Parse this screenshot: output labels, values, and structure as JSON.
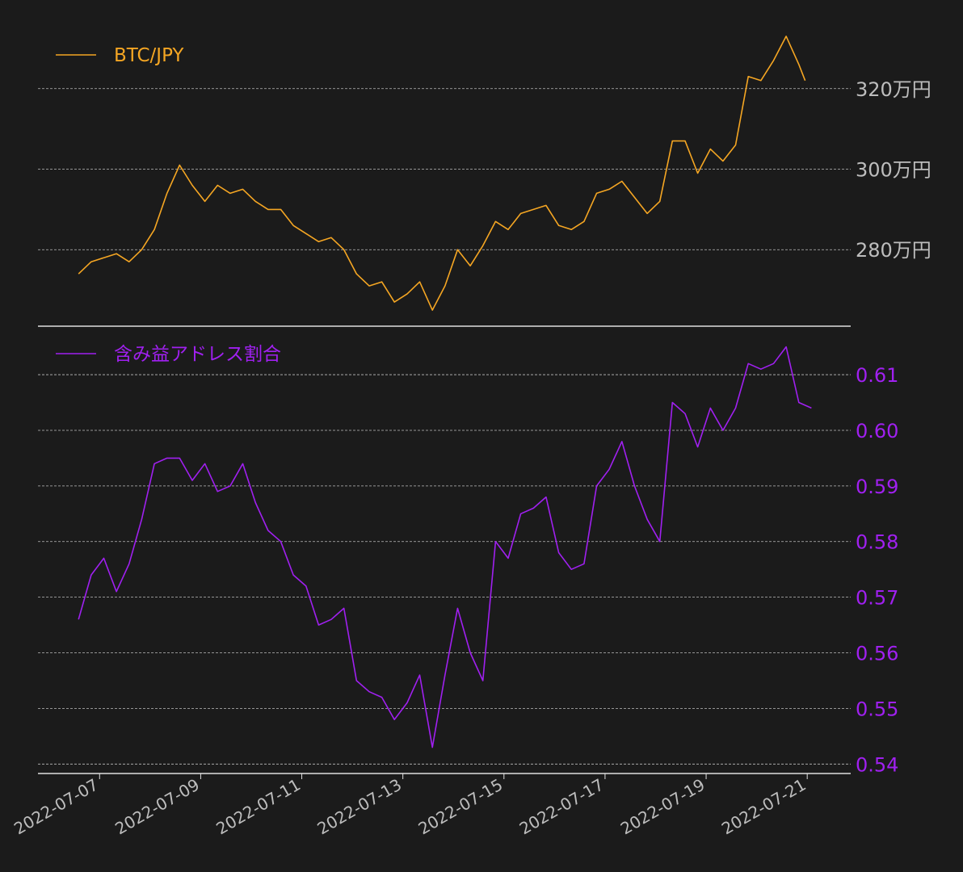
{
  "colors": {
    "background": "#1b1b1b",
    "btc": "#f5a623",
    "ratio": "#a020f0",
    "grid": "#bdbdbd",
    "axis": "#e0e0e0",
    "btc_tick": "#bdbdbd",
    "ratio_tick": "#a020f0"
  },
  "chart_data": [
    {
      "type": "line",
      "panel": "top",
      "grid": true,
      "legend_position": "top-left",
      "series": [
        {
          "name": "BTC/JPY",
          "color": "#f5a623"
        }
      ],
      "y_ticks": [
        280,
        300,
        320
      ],
      "y_tick_labels": [
        "280万円",
        "300万円",
        "320万円"
      ],
      "ylim": [
        261,
        338
      ],
      "x_range": [
        "2022-07-06T12:00",
        "2022-07-21T03:00"
      ],
      "points": [
        [
          "2022-07-06T14:00",
          274
        ],
        [
          "2022-07-06T20:00",
          277
        ],
        [
          "2022-07-07T02:00",
          278
        ],
        [
          "2022-07-07T08:00",
          279
        ],
        [
          "2022-07-07T14:00",
          277
        ],
        [
          "2022-07-07T20:00",
          280
        ],
        [
          "2022-07-08T02:00",
          285
        ],
        [
          "2022-07-08T08:00",
          294
        ],
        [
          "2022-07-08T14:00",
          301
        ],
        [
          "2022-07-08T20:00",
          296
        ],
        [
          "2022-07-09T02:00",
          292
        ],
        [
          "2022-07-09T08:00",
          296
        ],
        [
          "2022-07-09T14:00",
          294
        ],
        [
          "2022-07-09T20:00",
          295
        ],
        [
          "2022-07-10T02:00",
          292
        ],
        [
          "2022-07-10T08:00",
          290
        ],
        [
          "2022-07-10T14:00",
          290
        ],
        [
          "2022-07-10T20:00",
          286
        ],
        [
          "2022-07-11T02:00",
          284
        ],
        [
          "2022-07-11T08:00",
          282
        ],
        [
          "2022-07-11T14:00",
          283
        ],
        [
          "2022-07-11T20:00",
          280
        ],
        [
          "2022-07-12T02:00",
          274
        ],
        [
          "2022-07-12T08:00",
          271
        ],
        [
          "2022-07-12T14:00",
          272
        ],
        [
          "2022-07-12T20:00",
          267
        ],
        [
          "2022-07-13T02:00",
          269
        ],
        [
          "2022-07-13T08:00",
          272
        ],
        [
          "2022-07-13T14:00",
          265
        ],
        [
          "2022-07-13T20:00",
          271
        ],
        [
          "2022-07-14T02:00",
          280
        ],
        [
          "2022-07-14T08:00",
          276
        ],
        [
          "2022-07-14T14:00",
          281
        ],
        [
          "2022-07-14T20:00",
          287
        ],
        [
          "2022-07-15T02:00",
          285
        ],
        [
          "2022-07-15T08:00",
          289
        ],
        [
          "2022-07-15T14:00",
          290
        ],
        [
          "2022-07-15T20:00",
          291
        ],
        [
          "2022-07-16T02:00",
          286
        ],
        [
          "2022-07-16T08:00",
          285
        ],
        [
          "2022-07-16T14:00",
          287
        ],
        [
          "2022-07-16T20:00",
          294
        ],
        [
          "2022-07-17T02:00",
          295
        ],
        [
          "2022-07-17T08:00",
          297
        ],
        [
          "2022-07-17T14:00",
          293
        ],
        [
          "2022-07-17T20:00",
          289
        ],
        [
          "2022-07-18T02:00",
          292
        ],
        [
          "2022-07-18T08:00",
          307
        ],
        [
          "2022-07-18T14:00",
          307
        ],
        [
          "2022-07-18T20:00",
          299
        ],
        [
          "2022-07-19T02:00",
          305
        ],
        [
          "2022-07-19T08:00",
          302
        ],
        [
          "2022-07-19T14:00",
          306
        ],
        [
          "2022-07-19T20:00",
          323
        ],
        [
          "2022-07-20T02:00",
          322
        ],
        [
          "2022-07-20T08:00",
          327
        ],
        [
          "2022-07-20T14:00",
          333
        ],
        [
          "2022-07-20T20:00",
          326
        ],
        [
          "2022-07-20T23:00",
          322
        ]
      ]
    },
    {
      "type": "line",
      "panel": "bottom",
      "grid": true,
      "legend_position": "top-left",
      "series": [
        {
          "name": "含み益アドレス割合",
          "color": "#a020f0"
        }
      ],
      "y_ticks": [
        0.54,
        0.55,
        0.56,
        0.57,
        0.58,
        0.59,
        0.6,
        0.61
      ],
      "y_tick_labels": [
        "0.54",
        "0.55",
        "0.56",
        "0.57",
        "0.58",
        "0.59",
        "0.60",
        "0.61"
      ],
      "ylim": [
        0.5383,
        0.6164
      ],
      "x_ticks": [
        "2022-07-07",
        "2022-07-09",
        "2022-07-11",
        "2022-07-13",
        "2022-07-15",
        "2022-07-17",
        "2022-07-19",
        "2022-07-21"
      ],
      "x_range": [
        "2022-07-06T12:00",
        "2022-07-21T03:00"
      ],
      "points": [
        [
          "2022-07-06T14:00",
          0.566
        ],
        [
          "2022-07-06T20:00",
          0.574
        ],
        [
          "2022-07-07T02:00",
          0.577
        ],
        [
          "2022-07-07T08:00",
          0.571
        ],
        [
          "2022-07-07T14:00",
          0.576
        ],
        [
          "2022-07-07T20:00",
          0.584
        ],
        [
          "2022-07-08T02:00",
          0.594
        ],
        [
          "2022-07-08T08:00",
          0.595
        ],
        [
          "2022-07-08T14:00",
          0.595
        ],
        [
          "2022-07-08T20:00",
          0.591
        ],
        [
          "2022-07-09T02:00",
          0.594
        ],
        [
          "2022-07-09T08:00",
          0.589
        ],
        [
          "2022-07-09T14:00",
          0.59
        ],
        [
          "2022-07-09T20:00",
          0.594
        ],
        [
          "2022-07-10T02:00",
          0.587
        ],
        [
          "2022-07-10T08:00",
          0.582
        ],
        [
          "2022-07-10T14:00",
          0.58
        ],
        [
          "2022-07-10T20:00",
          0.574
        ],
        [
          "2022-07-11T02:00",
          0.572
        ],
        [
          "2022-07-11T08:00",
          0.565
        ],
        [
          "2022-07-11T14:00",
          0.566
        ],
        [
          "2022-07-11T20:00",
          0.568
        ],
        [
          "2022-07-12T02:00",
          0.555
        ],
        [
          "2022-07-12T08:00",
          0.553
        ],
        [
          "2022-07-12T14:00",
          0.552
        ],
        [
          "2022-07-12T20:00",
          0.548
        ],
        [
          "2022-07-13T02:00",
          0.551
        ],
        [
          "2022-07-13T08:00",
          0.556
        ],
        [
          "2022-07-13T14:00",
          0.543
        ],
        [
          "2022-07-13T20:00",
          0.556
        ],
        [
          "2022-07-14T02:00",
          0.568
        ],
        [
          "2022-07-14T08:00",
          0.56
        ],
        [
          "2022-07-14T14:00",
          0.555
        ],
        [
          "2022-07-14T20:00",
          0.58
        ],
        [
          "2022-07-15T02:00",
          0.577
        ],
        [
          "2022-07-15T08:00",
          0.585
        ],
        [
          "2022-07-15T14:00",
          0.586
        ],
        [
          "2022-07-15T20:00",
          0.588
        ],
        [
          "2022-07-16T02:00",
          0.578
        ],
        [
          "2022-07-16T08:00",
          0.575
        ],
        [
          "2022-07-16T14:00",
          0.576
        ],
        [
          "2022-07-16T20:00",
          0.59
        ],
        [
          "2022-07-17T02:00",
          0.593
        ],
        [
          "2022-07-17T08:00",
          0.598
        ],
        [
          "2022-07-17T14:00",
          0.59
        ],
        [
          "2022-07-17T20:00",
          0.584
        ],
        [
          "2022-07-18T02:00",
          0.58
        ],
        [
          "2022-07-18T08:00",
          0.605
        ],
        [
          "2022-07-18T14:00",
          0.603
        ],
        [
          "2022-07-18T20:00",
          0.597
        ],
        [
          "2022-07-19T02:00",
          0.604
        ],
        [
          "2022-07-19T08:00",
          0.6
        ],
        [
          "2022-07-19T14:00",
          0.604
        ],
        [
          "2022-07-19T20:00",
          0.612
        ],
        [
          "2022-07-20T02:00",
          0.611
        ],
        [
          "2022-07-20T08:00",
          0.612
        ],
        [
          "2022-07-20T14:00",
          0.615
        ],
        [
          "2022-07-20T20:00",
          0.605
        ],
        [
          "2022-07-21T02:00",
          0.604
        ]
      ]
    }
  ]
}
